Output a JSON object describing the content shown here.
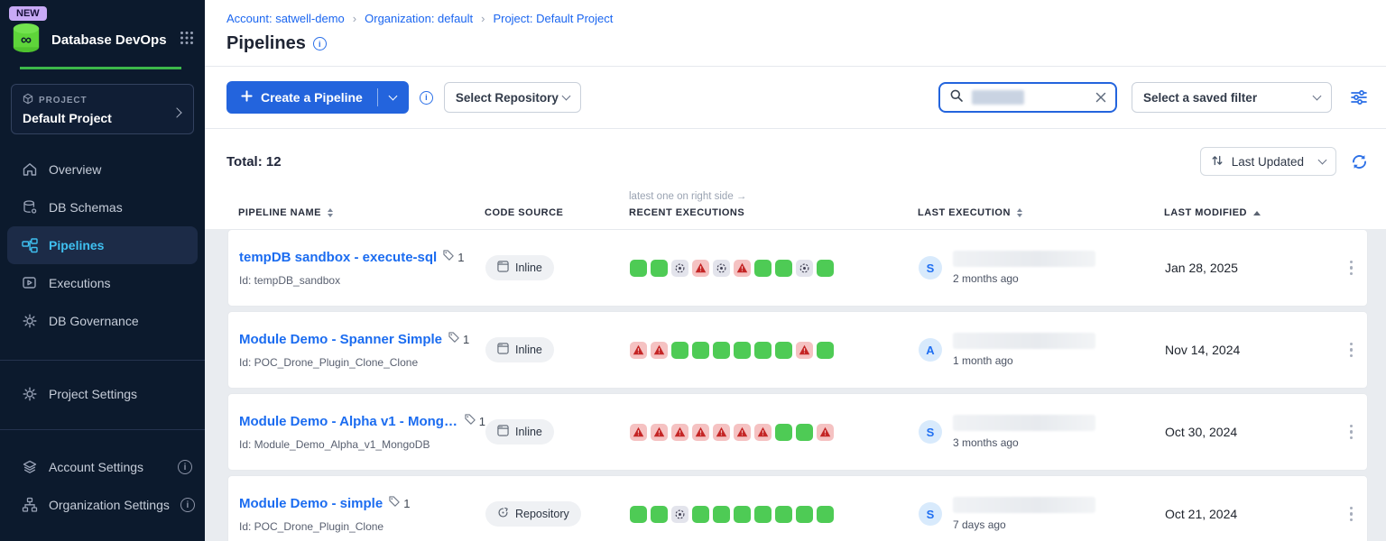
{
  "colors": {
    "accent_blue": "#2364dd",
    "link_blue": "#1b6cf0",
    "sidebar_bg": "#0c1a2d",
    "sidebar_active_text": "#3fc0f0",
    "brand_green": "#3db84a",
    "success_green": "#4ecb55",
    "error_pink": "#f5c2c2",
    "error_red": "#c42525",
    "aborted_gray": "#e3e4ec"
  },
  "sidebar": {
    "new_badge": "NEW",
    "app_title": "Database DevOps",
    "logo_icon": "database-logo-icon",
    "apps_grid_icon": "grid-icon",
    "project_card": {
      "icon": "cube-icon",
      "label": "PROJECT",
      "name": "Default Project"
    },
    "nav": [
      {
        "label": "Overview",
        "icon": "home-icon",
        "active": false
      },
      {
        "label": "DB Schemas",
        "icon": "database-icon",
        "active": false
      },
      {
        "label": "Pipelines",
        "icon": "pipelines-icon",
        "active": true
      },
      {
        "label": "Executions",
        "icon": "play-icon",
        "active": false
      },
      {
        "label": "DB Governance",
        "icon": "gear-icon",
        "active": false
      }
    ],
    "project_settings": "Project Settings",
    "account_settings": "Account Settings",
    "organization_settings": "Organization Settings"
  },
  "header": {
    "breadcrumbs": [
      {
        "label": "Account: satwell-demo"
      },
      {
        "label": "Organization: default"
      },
      {
        "label": "Project: Default Project"
      }
    ],
    "title": "Pipelines",
    "title_info_icon": "info-icon"
  },
  "toolbar": {
    "create_button_label": "Create a Pipeline",
    "create_button_icon": "plus-icon",
    "create_info_icon": "info-icon",
    "select_repository_label": "Select Repository",
    "search": {
      "value": "",
      "placeholder": "",
      "icon": "search-icon",
      "clear_icon": "close-icon"
    },
    "saved_filter_label": "Select a saved filter",
    "filter_panel_icon": "sliders-icon"
  },
  "listbar": {
    "total_label": "Total: 12",
    "sort_icon": "sort-arrows-icon",
    "sort_label": "Last Updated",
    "refresh_icon": "refresh-icon"
  },
  "table": {
    "executions_hint": "latest one on right side →",
    "columns": {
      "pipeline_name": "PIPELINE NAME",
      "code_source": "CODE SOURCE",
      "recent_executions": "RECENT EXECUTIONS",
      "last_execution": "LAST EXECUTION",
      "last_modified": "LAST MODIFIED"
    },
    "rows": [
      {
        "name": "tempDB sandbox - execute-sql",
        "tag_count": "1",
        "id": "Id: tempDB_sandbox",
        "source": "Inline",
        "source_type": "inline",
        "executions": [
          "success",
          "success",
          "aborted",
          "error",
          "aborted",
          "error",
          "success",
          "success",
          "aborted",
          "success"
        ],
        "avatar_letter": "S",
        "last_execution_ago": "2 months ago",
        "last_modified": "Jan 28, 2025"
      },
      {
        "name": "Module Demo - Spanner Simple",
        "tag_count": "1",
        "id": "Id: POC_Drone_Plugin_Clone_Clone",
        "source": "Inline",
        "source_type": "inline",
        "executions": [
          "error",
          "error",
          "success",
          "success",
          "success",
          "success",
          "success",
          "success",
          "error",
          "success"
        ],
        "avatar_letter": "A",
        "last_execution_ago": "1 month ago",
        "last_modified": "Nov 14, 2024"
      },
      {
        "name": "Module Demo - Alpha v1 - Mongo...",
        "tag_count": "1",
        "id": "Id: Module_Demo_Alpha_v1_MongoDB",
        "source": "Inline",
        "source_type": "inline",
        "executions": [
          "error",
          "error",
          "error",
          "error",
          "error",
          "error",
          "error",
          "success",
          "success",
          "error"
        ],
        "avatar_letter": "S",
        "last_execution_ago": "3 months ago",
        "last_modified": "Oct 30, 2024"
      },
      {
        "name": "Module Demo - simple",
        "tag_count": "1",
        "id": "Id: POC_Drone_Plugin_Clone",
        "source": "Repository",
        "source_type": "repository",
        "executions": [
          "success",
          "success",
          "aborted",
          "success",
          "success",
          "success",
          "success",
          "success",
          "success",
          "success"
        ],
        "avatar_letter": "S",
        "last_execution_ago": "7 days ago",
        "last_modified": "Oct 21, 2024"
      }
    ]
  }
}
